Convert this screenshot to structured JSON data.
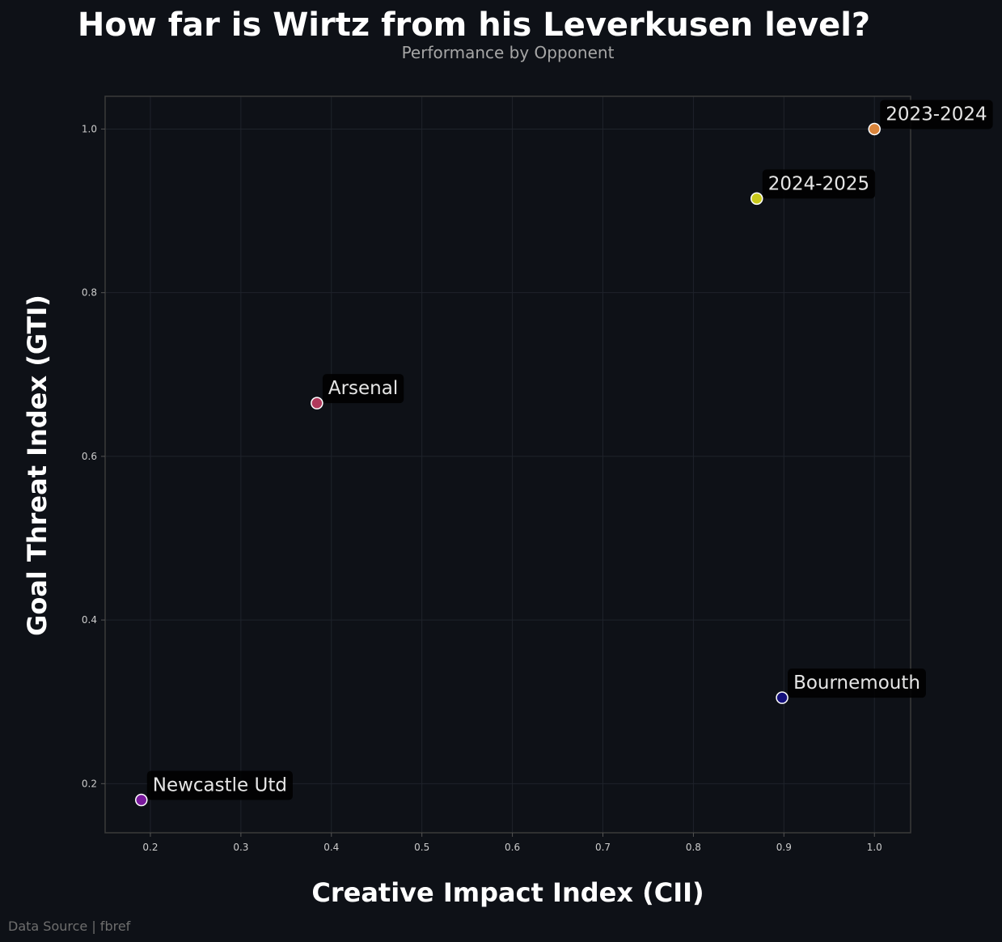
{
  "chart_data": {
    "type": "scatter",
    "title": "How far is Wirtz from his Leverkusen level?",
    "subtitle": "Performance by Opponent",
    "xlabel": "Creative Impact Index (CII)",
    "ylabel": "Goal Threat Index (GTI)",
    "xlim": [
      0.15,
      1.04
    ],
    "ylim": [
      0.14,
      1.04
    ],
    "x_ticks": [
      "0.2",
      "0.3",
      "0.4",
      "0.5",
      "0.6",
      "0.7",
      "0.8",
      "0.9",
      "1.0"
    ],
    "y_ticks": [
      "0.2",
      "0.4",
      "0.6",
      "0.8",
      "1.0"
    ],
    "grid": true,
    "points": [
      {
        "label": "2023-2024",
        "x": 1.0,
        "y": 1.0,
        "color": "#d9843b"
      },
      {
        "label": "2024-2025",
        "x": 0.87,
        "y": 0.915,
        "color": "#c9c91c"
      },
      {
        "label": "Arsenal",
        "x": 0.384,
        "y": 0.665,
        "color": "#b03a5c"
      },
      {
        "label": "Bournemouth",
        "x": 0.898,
        "y": 0.305,
        "color": "#14107a"
      },
      {
        "label": "Newcastle Utd",
        "x": 0.19,
        "y": 0.18,
        "color": "#7a1a9e"
      }
    ]
  },
  "footer": {
    "source": "Data Source | fbref"
  }
}
